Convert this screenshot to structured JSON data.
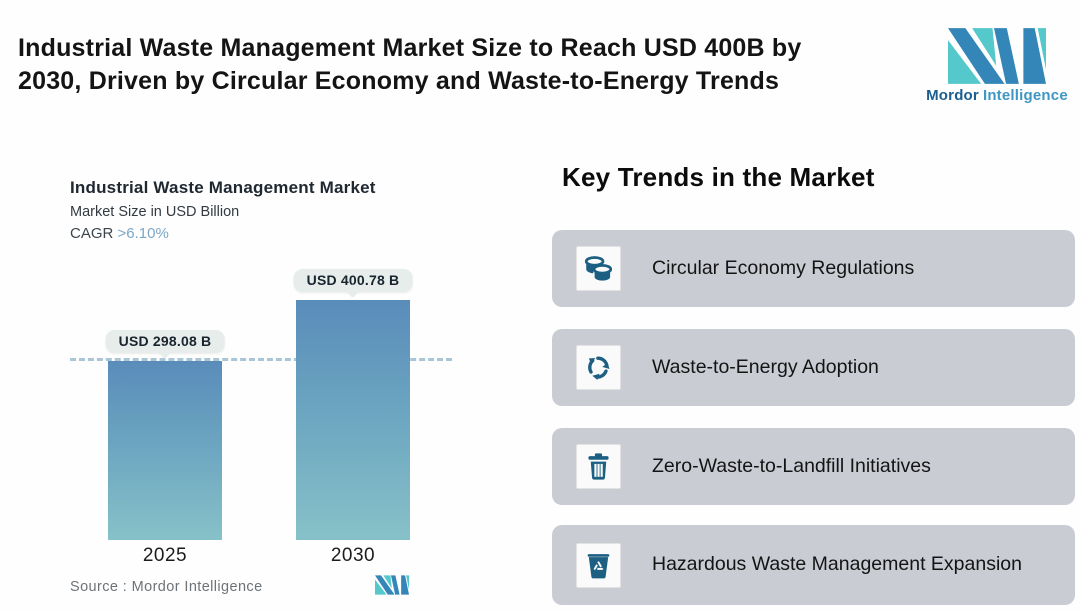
{
  "header": {
    "title_lines": [
      "Industrial Waste Management Market Size to Reach USD 400B by",
      "2030, Driven by Circular Economy and Waste-to-Energy Trends"
    ]
  },
  "brand": {
    "name_primary": "Mordor",
    "name_secondary": "Intelligence",
    "logo_blue": "#3486b8",
    "logo_teal": "#55c8cc"
  },
  "chart_data": {
    "type": "bar",
    "title": "Industrial Waste Management Market",
    "subtitle": "Market Size in USD Billion",
    "cagr_label": "CAGR",
    "cagr_value": ">6.10%",
    "categories": [
      "2025",
      "2030"
    ],
    "values": [
      298.08,
      400.78
    ],
    "value_labels": [
      "USD 298.08 B",
      "USD 400.78 B"
    ],
    "ylim": [
      0,
      415
    ],
    "reference_line": 298.08,
    "grid": false,
    "legend": "none",
    "bar_gradient_top": "#5a8cba",
    "bar_gradient_bottom": "#87c1c8",
    "dashed_line_color": "#a9c6d6",
    "source_label": "Source :  Mordor Intelligence"
  },
  "trends": {
    "heading": "Key Trends in the Market",
    "items": [
      {
        "icon": "coins-icon",
        "label": "Circular Economy Regulations"
      },
      {
        "icon": "recycle-icon",
        "label": "Waste-to-Energy Adoption"
      },
      {
        "icon": "trash-bin-icon",
        "label": "Zero-Waste-to-Landfill Initiatives"
      },
      {
        "icon": "recycle-bin-icon",
        "label": "Hazardous Waste Management Expansion"
      }
    ],
    "card_bg": "#c9cdd3",
    "icon_color": "#1d5f82"
  }
}
